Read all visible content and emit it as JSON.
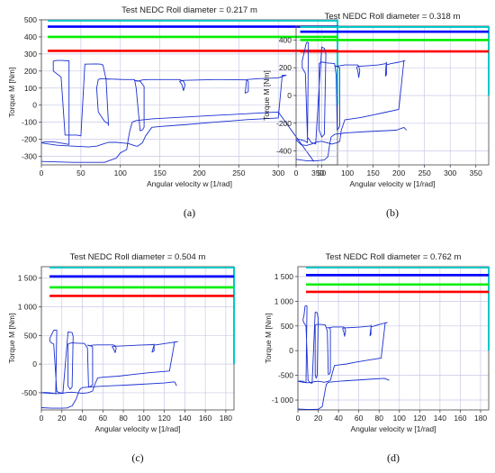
{
  "chart_data": [
    {
      "type": "line",
      "title": "Test  NEDC  Roll diameter =  0.217  m",
      "xlabel": "Angular velocity w [1/rad]",
      "ylabel": "Torque M [Nm]",
      "caption": "(a)",
      "xlim": [
        0,
        375
      ],
      "ylim": [
        -350,
        500
      ],
      "xticks": [
        "0",
        "50",
        "100",
        "150",
        "200",
        "250",
        "300",
        "350"
      ],
      "yticks": [
        "-300",
        "-200",
        "-100",
        "0",
        "100",
        "200",
        "300",
        "400",
        "500"
      ],
      "xtick_values": [
        0,
        50,
        100,
        150,
        200,
        250,
        300,
        350
      ],
      "ytick_values": [
        -300,
        -200,
        -100,
        0,
        100,
        200,
        300,
        400,
        500
      ],
      "grid": true,
      "limit_lines": [
        {
          "y": 460,
          "x_start": 8,
          "color": "#0000ff"
        },
        {
          "y": 400,
          "x_start": 8,
          "color": "#00ee00"
        },
        {
          "y": 318,
          "x_start": 8,
          "color": "#ff0000"
        }
      ],
      "limit_box": {
        "color": "#00c8c8",
        "x": 375,
        "y_top": 500
      },
      "series": [
        {
          "color": "#1a2fd0",
          "x": [
            0,
            5,
            15,
            25,
            35,
            35,
            25,
            20,
            15,
            15,
            25,
            30,
            45,
            50,
            55,
            70,
            75,
            78,
            82,
            85,
            85,
            80,
            72,
            70,
            72,
            75,
            105,
            118,
            120,
            125,
            128,
            130,
            130,
            125,
            118,
            122,
            128,
            135,
            175,
            180,
            182,
            180,
            178,
            175,
            180,
            220,
            225,
            260,
            262,
            262,
            258,
            260,
            275,
            300,
            308,
            310,
            305,
            300,
            260,
            220,
            180,
            150,
            140,
            132,
            128,
            125,
            122,
            120,
            110,
            100,
            95,
            85,
            80,
            70,
            60,
            40,
            20,
            5,
            0
          ],
          "y": [
            -220,
            -215,
            -215,
            -222,
            -230,
            260,
            262,
            262,
            258,
            200,
            165,
            -175,
            -175,
            -180,
            240,
            242,
            240,
            235,
            150,
            -120,
            -110,
            -95,
            -40,
            100,
            150,
            155,
            150,
            150,
            100,
            -150,
            -145,
            -130,
            110,
            140,
            145,
            140,
            148,
            150,
            150,
            140,
            120,
            85,
            120,
            140,
            145,
            150,
            150,
            148,
            140,
            80,
            70,
            150,
            155,
            160,
            172,
            175,
            175,
            -75,
            -85,
            -100,
            -115,
            -125,
            -130,
            -180,
            -220,
            -230,
            -240,
            -240,
            -225,
            -220,
            -218,
            -218,
            -225,
            -240,
            -245,
            -240,
            -235,
            -225,
            -220
          ]
        },
        {
          "color": "#1a2fd0",
          "x": [
            0,
            40,
            80,
            95,
            100,
            108,
            110,
            112,
            115,
            120,
            140,
            220,
            300,
            345
          ],
          "y": [
            -330,
            -335,
            -335,
            -310,
            -280,
            -260,
            -200,
            -150,
            -100,
            -90,
            -80,
            -60,
            -40,
            -330
          ]
        }
      ]
    },
    {
      "type": "line",
      "title": "Test  NEDC  Roll diameter =  0.318  m",
      "xlabel": "Angular velocity w [1/rad]",
      "ylabel": "Torque M [Nm]",
      "caption": "(b)",
      "xlim": [
        0,
        375
      ],
      "ylim": [
        -500,
        500
      ],
      "xticks": [
        "0",
        "50",
        "100",
        "150",
        "200",
        "250",
        "300",
        "350"
      ],
      "yticks": [
        "-400",
        "-200",
        "0",
        "200",
        "400"
      ],
      "xtick_values": [
        0,
        50,
        100,
        150,
        200,
        250,
        300,
        350
      ],
      "ytick_values": [
        -400,
        -200,
        0,
        200,
        400
      ],
      "grid": true,
      "limit_lines": [
        {
          "y": 460,
          "x_start": 8,
          "color": "#0000ff"
        },
        {
          "y": 400,
          "x_start": 8,
          "color": "#00ee00"
        },
        {
          "y": 318,
          "x_start": 8,
          "color": "#ff0000"
        }
      ],
      "limit_box": {
        "color": "#00c8c8",
        "x": 375,
        "y_top": 500
      },
      "series": [
        {
          "color": "#1a2fd0",
          "x": [
            0,
            5,
            10,
            18,
            22,
            24,
            22,
            20,
            15,
            12,
            12,
            18,
            22,
            30,
            35,
            38,
            50,
            52,
            55,
            58,
            55,
            50,
            45,
            45,
            48,
            52,
            60,
            75,
            78,
            80,
            82,
            85,
            85,
            80,
            75,
            78,
            85,
            95,
            120,
            122,
            124,
            122,
            120,
            118,
            120,
            140,
            160,
            175,
            176,
            176,
            174,
            175,
            185,
            200,
            210,
            212,
            210,
            200,
            175,
            150,
            125,
            105,
            95,
            88,
            85,
            80,
            75,
            70,
            60,
            50,
            40,
            30,
            20,
            10,
            0
          ],
          "y": [
            -320,
            -315,
            -320,
            -330,
            -340,
            380,
            385,
            380,
            300,
            250,
            200,
            160,
            -300,
            -340,
            -345,
            -350,
            350,
            345,
            340,
            300,
            -280,
            -300,
            -250,
            230,
            240,
            240,
            235,
            230,
            150,
            -250,
            -240,
            -220,
            200,
            210,
            215,
            210,
            215,
            220,
            220,
            210,
            180,
            130,
            180,
            200,
            210,
            215,
            220,
            230,
            240,
            150,
            140,
            220,
            230,
            240,
            250,
            252,
            250,
            -100,
            -120,
            -140,
            -160,
            -170,
            -175,
            -250,
            -330,
            -340,
            -345,
            -350,
            -340,
            -330,
            -335,
            -350,
            -360,
            -355,
            -320
          ]
        },
        {
          "color": "#1a2fd0",
          "x": [
            0,
            20,
            40,
            55,
            62,
            65,
            68,
            75,
            95,
            140,
            195,
            210,
            215
          ],
          "y": [
            -460,
            -470,
            -470,
            -465,
            -440,
            -360,
            -300,
            -280,
            -270,
            -260,
            -250,
            -230,
            -250
          ]
        }
      ]
    },
    {
      "type": "line",
      "title": "Test  NEDC  Roll diameter =  0.504  m",
      "xlabel": "Angular velocity w [1/rad]",
      "ylabel": "Torque M [Nm]",
      "caption": "(c)",
      "xlim": [
        0,
        188
      ],
      "ylim": [
        -800,
        1700
      ],
      "xticks": [
        "0",
        "20",
        "40",
        "60",
        "80",
        "100",
        "120",
        "140",
        "160",
        "180"
      ],
      "yticks": [
        "-500",
        "0",
        "500",
        "1 000",
        "1 500"
      ],
      "xtick_values": [
        0,
        20,
        40,
        60,
        80,
        100,
        120,
        140,
        160,
        180
      ],
      "ytick_values": [
        -500,
        0,
        500,
        1000,
        1500
      ],
      "grid": true,
      "limit_lines": [
        {
          "y": 1530,
          "x_start": 8,
          "color": "#0000ff"
        },
        {
          "y": 1340,
          "x_start": 8,
          "color": "#00ee00"
        },
        {
          "y": 1190,
          "x_start": 8,
          "color": "#ff0000"
        }
      ],
      "limit_box": {
        "color": "#00c8c8",
        "x": 188,
        "y_top": 1700
      },
      "series": [
        {
          "color": "#1a2fd0",
          "x": [
            0,
            3,
            8,
            12,
            14,
            15,
            14,
            12,
            9,
            8,
            9,
            12,
            15,
            18,
            20,
            21,
            26,
            28,
            30,
            31,
            30,
            28,
            26,
            26,
            28,
            30,
            35,
            42,
            45,
            46,
            48,
            50,
            50,
            48,
            45,
            47,
            50,
            55,
            70,
            72,
            73,
            72,
            70,
            69,
            70,
            82,
            95,
            110,
            110,
            110,
            108,
            110,
            117,
            125,
            131,
            133,
            130,
            125,
            105,
            90,
            75,
            60,
            55,
            52,
            50,
            47,
            45,
            40,
            35,
            30,
            25,
            20,
            15,
            8,
            0
          ],
          "y": [
            -500,
            -495,
            -500,
            -510,
            -520,
            590,
            595,
            590,
            480,
            420,
            380,
            350,
            -480,
            -500,
            -505,
            -510,
            560,
            555,
            550,
            480,
            -400,
            -440,
            -380,
            350,
            365,
            370,
            365,
            360,
            280,
            -400,
            -390,
            -360,
            300,
            320,
            330,
            320,
            330,
            335,
            335,
            320,
            280,
            200,
            280,
            300,
            310,
            320,
            330,
            340,
            350,
            230,
            210,
            330,
            350,
            370,
            385,
            390,
            385,
            -120,
            -150,
            -180,
            -210,
            -230,
            -240,
            -360,
            -470,
            -490,
            -500,
            -510,
            -500,
            -490,
            -495,
            -510,
            -515,
            -510,
            -500
          ]
        },
        {
          "color": "#1a2fd0",
          "x": [
            0,
            10,
            20,
            25,
            30,
            34,
            36,
            38,
            40,
            55,
            90,
            120,
            130,
            132
          ],
          "y": [
            -760,
            -770,
            -770,
            -765,
            -730,
            -610,
            -500,
            -430,
            -410,
            -390,
            -360,
            -330,
            -310,
            -380
          ]
        }
      ]
    },
    {
      "type": "line",
      "title": "Test  NEDC  Roll diameter =  0.762  m",
      "xlabel": "Angular velocity w [1/rad]",
      "ylabel": "Torque M [Nm]",
      "caption": "(d)",
      "xlim": [
        0,
        188
      ],
      "ylim": [
        -1200,
        1700
      ],
      "xticks": [
        "0",
        "20",
        "40",
        "60",
        "80",
        "100",
        "120",
        "140",
        "160",
        "180"
      ],
      "yticks": [
        "-1 000",
        "-500",
        "0",
        "500",
        "1 000",
        "1 500"
      ],
      "xtick_values": [
        0,
        20,
        40,
        60,
        80,
        100,
        120,
        140,
        160,
        180
      ],
      "ytick_values": [
        -1000,
        -500,
        0,
        500,
        1000,
        1500
      ],
      "grid": true,
      "limit_lines": [
        {
          "y": 1530,
          "x_start": 8,
          "color": "#0000ff"
        },
        {
          "y": 1340,
          "x_start": 8,
          "color": "#00ee00"
        },
        {
          "y": 1190,
          "x_start": 8,
          "color": "#ff0000"
        }
      ],
      "limit_box": {
        "color": "#00c8c8",
        "x": 188,
        "y_top": 1700
      },
      "series": [
        {
          "color": "#1a2fd0",
          "x": [
            0,
            2,
            5,
            7,
            8,
            9,
            8,
            7,
            6,
            5,
            6,
            8,
            10,
            12,
            13,
            14,
            17,
            18,
            19,
            20,
            19,
            18,
            17,
            17,
            18,
            20,
            23,
            27,
            29,
            30,
            31,
            32,
            32,
            31,
            29,
            30,
            32,
            35,
            45,
            46,
            47,
            46,
            45,
            44,
            45,
            55,
            62,
            72,
            72,
            72,
            71,
            72,
            77,
            82,
            86,
            88,
            86,
            82,
            70,
            58,
            48,
            40,
            36,
            34,
            32,
            30,
            28,
            26,
            23,
            20,
            17,
            13,
            10,
            5,
            0
          ],
          "y": [
            -620,
            -615,
            -620,
            -640,
            -650,
            900,
            910,
            900,
            720,
            620,
            560,
            500,
            -600,
            -650,
            -655,
            -660,
            780,
            775,
            770,
            650,
            -500,
            -560,
            -480,
            510,
            530,
            535,
            530,
            520,
            400,
            -480,
            -470,
            -430,
            440,
            460,
            470,
            460,
            470,
            480,
            480,
            460,
            400,
            290,
            400,
            440,
            460,
            470,
            480,
            500,
            520,
            330,
            300,
            480,
            510,
            540,
            560,
            570,
            560,
            -150,
            -190,
            -230,
            -270,
            -290,
            -300,
            -450,
            -600,
            -620,
            -630,
            -640,
            -630,
            -620,
            -625,
            -640,
            -650,
            -640,
            -620
          ]
        },
        {
          "color": "#1a2fd0",
          "x": [
            0,
            8,
            15,
            20,
            24,
            26,
            28,
            30,
            40,
            70,
            85,
            90
          ],
          "y": [
            -1180,
            -1190,
            -1190,
            -1185,
            -1130,
            -900,
            -680,
            -640,
            -620,
            -580,
            -560,
            -600
          ]
        }
      ]
    }
  ]
}
